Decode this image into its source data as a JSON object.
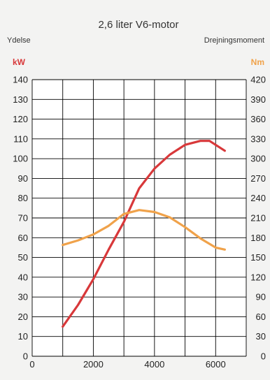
{
  "chart_data": {
    "type": "line",
    "title": "2,6 liter V6-motor",
    "left_label": "Ydelse",
    "right_label": "Drejningsmoment",
    "xlabel": "",
    "xlim": [
      0,
      7000
    ],
    "x_ticks": [
      0,
      2000,
      4000,
      6000
    ],
    "x_tick_labels": [
      "0",
      "2000",
      "4000",
      "6000"
    ],
    "y_left": {
      "unit": "kW",
      "range": [
        0,
        140
      ],
      "ticks": [
        0,
        10,
        20,
        30,
        40,
        50,
        60,
        70,
        80,
        90,
        100,
        110,
        120,
        130,
        140
      ],
      "tick_labels": [
        "0",
        "10",
        "20",
        "30",
        "40",
        "50",
        "60",
        "70",
        "80",
        "90",
        "100",
        "110",
        "120",
        "130",
        "140"
      ]
    },
    "y_right": {
      "unit": "Nm",
      "range": [
        0,
        420
      ],
      "ticks": [
        0,
        30,
        60,
        90,
        120,
        150,
        180,
        210,
        240,
        270,
        300,
        330,
        360,
        390,
        420
      ],
      "tick_labels": [
        "0",
        "30",
        "60",
        "90",
        "120",
        "150",
        "180",
        "210",
        "240",
        "270",
        "300",
        "330",
        "360",
        "390",
        "420"
      ]
    },
    "grid": true,
    "legend": "none",
    "series": [
      {
        "axis": "left",
        "color": "#d8383a",
        "x": [
          1000,
          1500,
          2000,
          2500,
          3000,
          3500,
          4000,
          4500,
          5000,
          5500,
          5800,
          6300
        ],
        "values": [
          15,
          26,
          39,
          54,
          68,
          85,
          95,
          102,
          107,
          109,
          109,
          104
        ]
      },
      {
        "axis": "right",
        "color": "#f0a24a",
        "x": [
          1000,
          1500,
          2000,
          2500,
          3000,
          3500,
          4000,
          4500,
          5000,
          5500,
          6000,
          6300
        ],
        "values": [
          169,
          176,
          185,
          198,
          216,
          222,
          219,
          211,
          196,
          179,
          165,
          162
        ]
      }
    ]
  },
  "colors": {
    "kw_unit": "#d8383a",
    "nm_unit": "#f0a24a",
    "plot_background": "#ffffff",
    "page_background": "#f3f3f2"
  }
}
